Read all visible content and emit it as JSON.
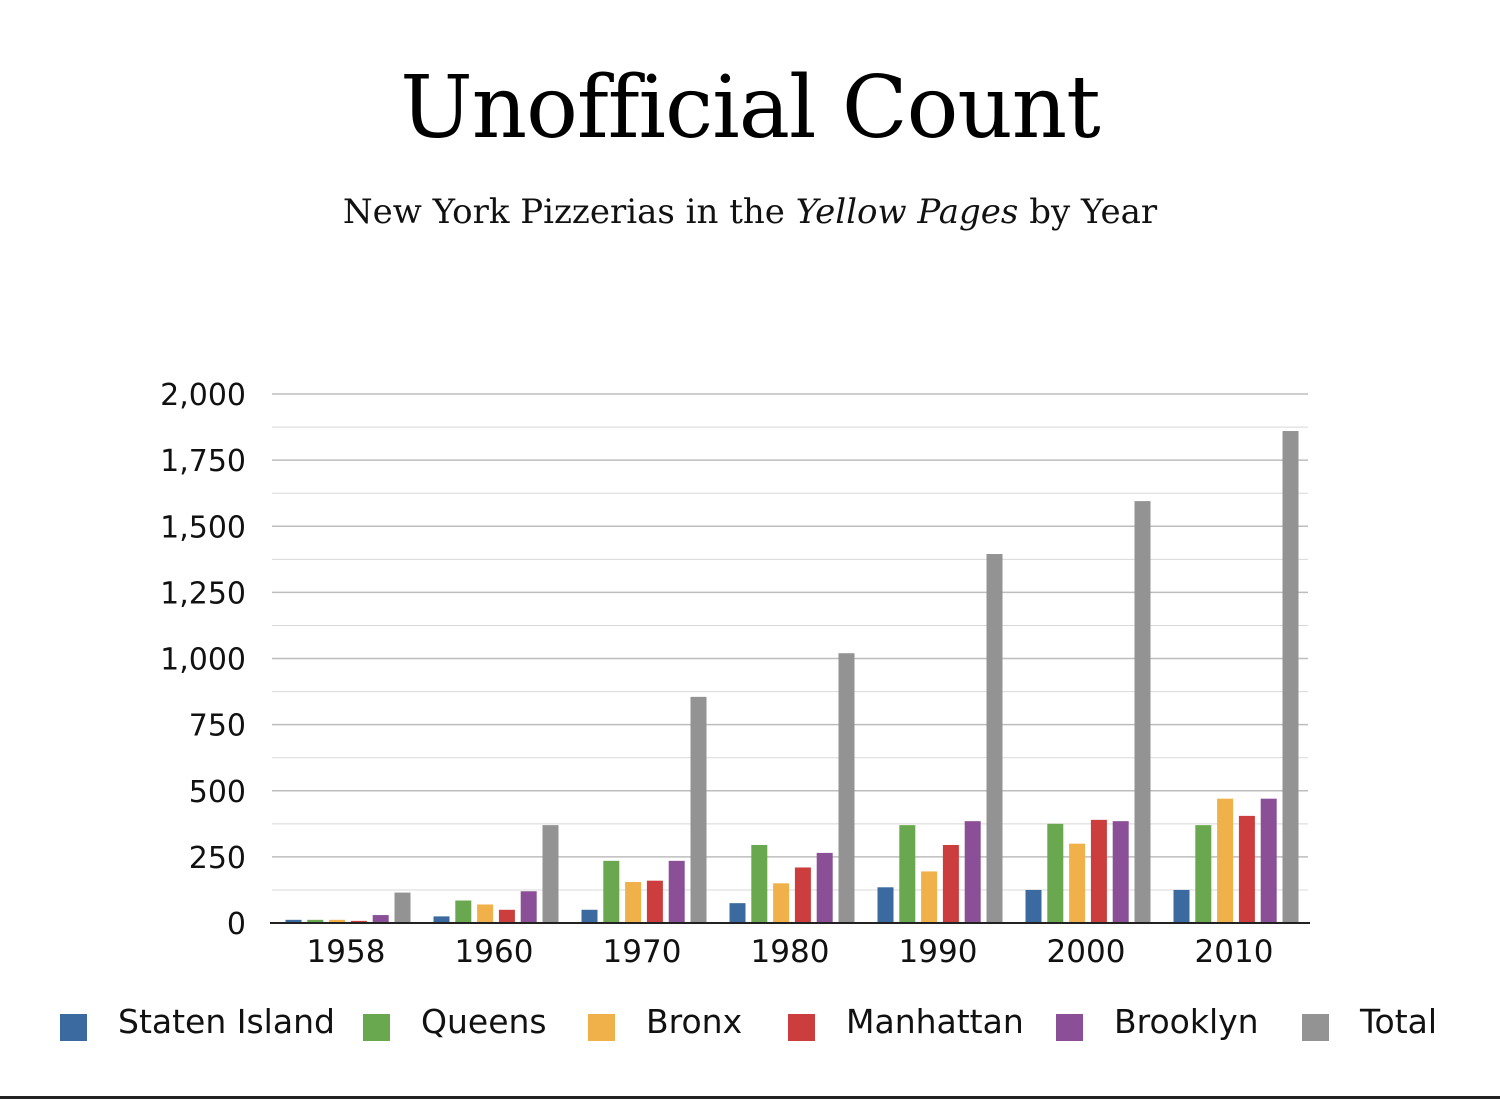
{
  "chart_data": {
    "type": "bar",
    "title": "Unofficial Count",
    "subtitle_parts": [
      "New York Pizzerias in the ",
      "Yellow Pages",
      " by Year"
    ],
    "categories": [
      "1958",
      "1960",
      "1970",
      "1980",
      "1990",
      "2000",
      "2010"
    ],
    "series": [
      {
        "name": "Staten Island",
        "color": "#3b6aa0",
        "values": [
          12,
          25,
          50,
          75,
          135,
          125,
          125
        ]
      },
      {
        "name": "Queens",
        "color": "#6aa84f",
        "values": [
          12,
          85,
          235,
          295,
          370,
          375,
          370
        ]
      },
      {
        "name": "Bronx",
        "color": "#f0b04a",
        "values": [
          12,
          70,
          155,
          150,
          195,
          300,
          470
        ]
      },
      {
        "name": "Manhattan",
        "color": "#cc3e3e",
        "values": [
          8,
          50,
          160,
          210,
          295,
          390,
          405
        ]
      },
      {
        "name": "Brooklyn",
        "color": "#8a4f96",
        "values": [
          30,
          120,
          235,
          265,
          385,
          385,
          470
        ]
      },
      {
        "name": "Total",
        "color": "#939393",
        "values": [
          115,
          370,
          855,
          1020,
          1395,
          1595,
          1860
        ]
      }
    ],
    "y_ticks": [
      "0",
      "250",
      "500",
      "750",
      "1,000",
      "1,250",
      "1,500",
      "1,750",
      "2,000"
    ],
    "y_tick_values": [
      0,
      250,
      500,
      750,
      1000,
      1250,
      1500,
      1750,
      2000
    ],
    "ylim": [
      0,
      2000
    ],
    "minor_gridline_step": 125,
    "grid": true,
    "legend_position": "bottom",
    "xlabel": "",
    "ylabel": ""
  }
}
